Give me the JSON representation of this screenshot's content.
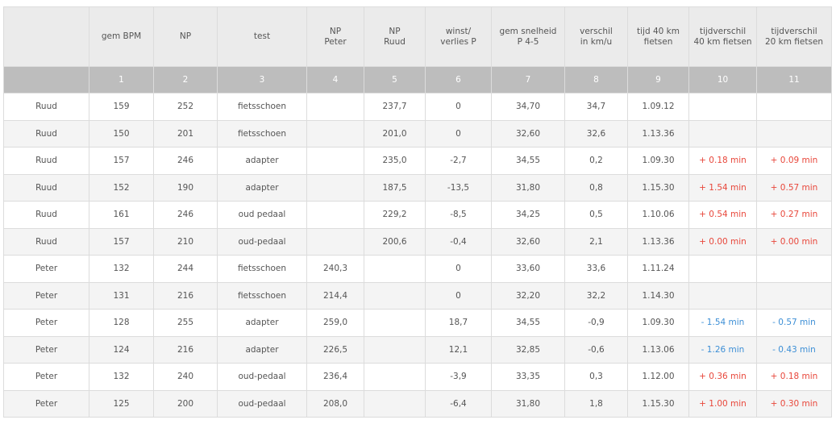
{
  "colors": {
    "positive": "#e8473b",
    "negative": "#3d8fd6",
    "header_bg": "#ebebeb",
    "number_row_bg": "#bdbdbd"
  },
  "headers": [
    "",
    "gem BPM",
    "NP",
    "test",
    "NP\nPeter",
    "NP\nRuud",
    "winst/\nverlies P",
    "gem snelheid\nP 4-5",
    "verschil\nin km/u",
    "tijd 40 km\nfietsen",
    "tijdverschil\n40 km fietsen",
    "tijdverschil\n20 km fietsen"
  ],
  "column_numbers": [
    "",
    "1",
    "2",
    "3",
    "4",
    "5",
    "6",
    "7",
    "8",
    "9",
    "10",
    "11"
  ],
  "rows": [
    [
      "Ruud",
      "159",
      "252",
      "fietsschoen",
      "",
      "237,7",
      "0",
      "34,70",
      "34,7",
      "1.09.12",
      "",
      ""
    ],
    [
      "Ruud",
      "150",
      "201",
      "fietsschoen",
      "",
      "201,0",
      "0",
      "32,60",
      "32,6",
      "1.13.36",
      "",
      ""
    ],
    [
      "Ruud",
      "157",
      "246",
      "adapter",
      "",
      "235,0",
      "-2,7",
      "34,55",
      "0,2",
      "1.09.30",
      "+ 0.18 min",
      "+ 0.09 min"
    ],
    [
      "Ruud",
      "152",
      "190",
      "adapter",
      "",
      "187,5",
      "-13,5",
      "31,80",
      "0,8",
      "1.15.30",
      "+ 1.54 min",
      "+ 0.57 min"
    ],
    [
      "Ruud",
      "161",
      "246",
      "oud pedaal",
      "",
      "229,2",
      "-8,5",
      "34,25",
      "0,5",
      "1.10.06",
      "+ 0.54 min",
      "+ 0.27 min"
    ],
    [
      "Ruud",
      "157",
      "210",
      "oud-pedaal",
      "",
      "200,6",
      "-0,4",
      "32,60",
      "2,1",
      "1.13.36",
      "+ 0.00 min",
      "+ 0.00 min"
    ],
    [
      "Peter",
      "132",
      "244",
      "fietsschoen",
      "240,3",
      "",
      "0",
      "33,60",
      "33,6",
      "1.11.24",
      "",
      ""
    ],
    [
      "Peter",
      "131",
      "216",
      "fietsschoen",
      "214,4",
      "",
      "0",
      "32,20",
      "32,2",
      "1.14.30",
      "",
      ""
    ],
    [
      "Peter",
      "128",
      "255",
      "adapter",
      "259,0",
      "",
      "18,7",
      "34,55",
      "-0,9",
      "1.09.30",
      "- 1.54 min",
      "- 0.57 min"
    ],
    [
      "Peter",
      "124",
      "216",
      "adapter",
      "226,5",
      "",
      "12,1",
      "32,85",
      "-0,6",
      "1.13.06",
      "- 1.26 min",
      "- 0.43 min"
    ],
    [
      "Peter",
      "132",
      "240",
      "oud-pedaal",
      "236,4",
      "",
      "-3,9",
      "33,35",
      "0,3",
      "1.12.00",
      "+ 0.36 min",
      "+ 0.18 min"
    ],
    [
      "Peter",
      "125",
      "200",
      "oud-pedaal",
      "208,0",
      "",
      "-6,4",
      "31,80",
      "1,8",
      "1.15.30",
      "+ 1.00 min",
      "+ 0.30 min"
    ]
  ]
}
